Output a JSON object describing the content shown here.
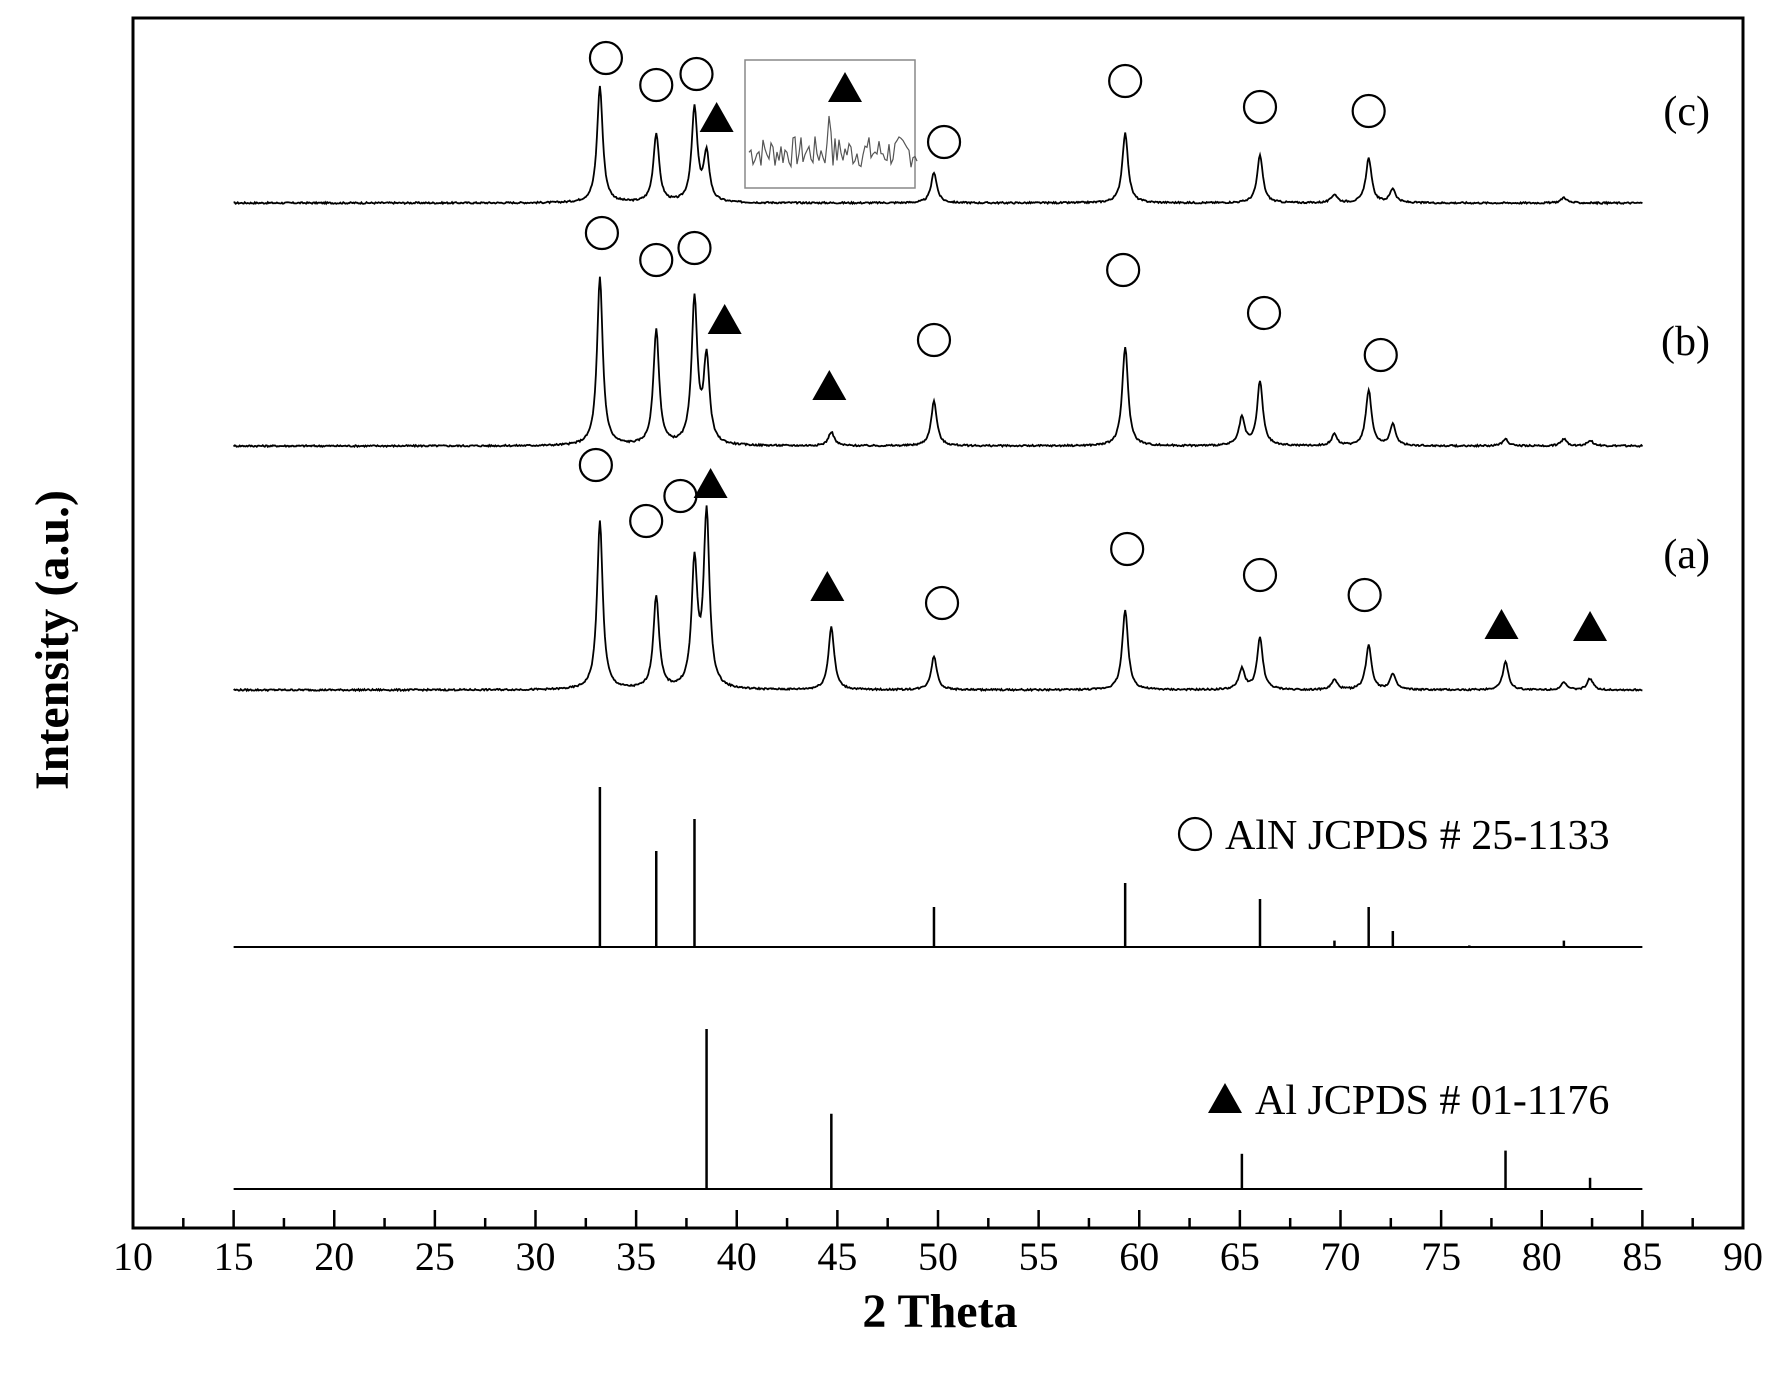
{
  "chart_data": {
    "type": "line",
    "xlabel": "2  Theta",
    "ylabel": "Intensity (a.u.)",
    "xlim": [
      10,
      90
    ],
    "x_ticks": [
      10,
      15,
      20,
      25,
      30,
      35,
      40,
      45,
      50,
      55,
      60,
      65,
      70,
      75,
      80,
      85,
      90
    ],
    "x_tick_labels": [
      "10",
      "15",
      "20",
      "25",
      "30",
      "35",
      "40",
      "45",
      "50",
      "55",
      "60",
      "65",
      "70",
      "75",
      "80",
      "85",
      "90"
    ],
    "y_ticks_shown": false,
    "legend_position": "right",
    "series": [
      {
        "name": "(c)",
        "peaks": [
          {
            "x": 33.2,
            "h": 0.83
          },
          {
            "x": 36.0,
            "h": 0.49
          },
          {
            "x": 37.9,
            "h": 0.67
          },
          {
            "x": 38.5,
            "h": 0.34
          },
          {
            "x": 49.8,
            "h": 0.22
          },
          {
            "x": 59.3,
            "h": 0.5
          },
          {
            "x": 66.0,
            "h": 0.34
          },
          {
            "x": 69.7,
            "h": 0.06
          },
          {
            "x": 71.4,
            "h": 0.32
          },
          {
            "x": 72.6,
            "h": 0.1
          },
          {
            "x": 81.1,
            "h": 0.04
          }
        ],
        "markers": [
          {
            "x": 33.5,
            "type": "AlN"
          },
          {
            "x": 36.0,
            "type": "AlN"
          },
          {
            "x": 38.0,
            "type": "AlN"
          },
          {
            "x": 39.0,
            "type": "Al"
          },
          {
            "x": 50.3,
            "type": "AlN"
          },
          {
            "x": 59.3,
            "type": "AlN"
          },
          {
            "x": 66.0,
            "type": "AlN"
          },
          {
            "x": 71.4,
            "type": "AlN"
          }
        ],
        "inset": {
          "peak_x": 45.0,
          "marker": "Al"
        }
      },
      {
        "name": "(b)",
        "peaks": [
          {
            "x": 33.2,
            "h": 1.2
          },
          {
            "x": 36.0,
            "h": 0.82
          },
          {
            "x": 37.9,
            "h": 1.04
          },
          {
            "x": 38.5,
            "h": 0.61
          },
          {
            "x": 44.7,
            "h": 0.1
          },
          {
            "x": 49.8,
            "h": 0.32
          },
          {
            "x": 59.3,
            "h": 0.71
          },
          {
            "x": 65.1,
            "h": 0.2
          },
          {
            "x": 66.0,
            "h": 0.46
          },
          {
            "x": 69.7,
            "h": 0.08
          },
          {
            "x": 71.4,
            "h": 0.4
          },
          {
            "x": 72.6,
            "h": 0.15
          },
          {
            "x": 78.2,
            "h": 0.05
          },
          {
            "x": 81.1,
            "h": 0.05
          },
          {
            "x": 82.4,
            "h": 0.04
          }
        ],
        "markers": [
          {
            "x": 33.3,
            "type": "AlN"
          },
          {
            "x": 36.0,
            "type": "AlN"
          },
          {
            "x": 37.9,
            "type": "AlN"
          },
          {
            "x": 39.4,
            "type": "Al"
          },
          {
            "x": 44.6,
            "type": "Al"
          },
          {
            "x": 49.8,
            "type": "AlN"
          },
          {
            "x": 59.2,
            "type": "AlN"
          },
          {
            "x": 66.2,
            "type": "AlN"
          },
          {
            "x": 72.0,
            "type": "AlN"
          }
        ]
      },
      {
        "name": "(a)",
        "peaks": [
          {
            "x": 33.2,
            "h": 1.2
          },
          {
            "x": 36.0,
            "h": 0.66
          },
          {
            "x": 37.9,
            "h": 0.89
          },
          {
            "x": 38.5,
            "h": 1.25
          },
          {
            "x": 44.7,
            "h": 0.45
          },
          {
            "x": 49.8,
            "h": 0.24
          },
          {
            "x": 59.3,
            "h": 0.57
          },
          {
            "x": 65.1,
            "h": 0.15
          },
          {
            "x": 66.0,
            "h": 0.37
          },
          {
            "x": 69.7,
            "h": 0.07
          },
          {
            "x": 71.4,
            "h": 0.32
          },
          {
            "x": 72.6,
            "h": 0.11
          },
          {
            "x": 78.2,
            "h": 0.2
          },
          {
            "x": 81.1,
            "h": 0.05
          },
          {
            "x": 82.4,
            "h": 0.08
          }
        ],
        "markers": [
          {
            "x": 33.0,
            "type": "AlN"
          },
          {
            "x": 35.5,
            "type": "AlN"
          },
          {
            "x": 37.2,
            "type": "AlN"
          },
          {
            "x": 38.7,
            "type": "Al"
          },
          {
            "x": 44.5,
            "type": "Al"
          },
          {
            "x": 50.2,
            "type": "AlN"
          },
          {
            "x": 59.4,
            "type": "AlN"
          },
          {
            "x": 66.0,
            "type": "AlN"
          },
          {
            "x": 71.2,
            "type": "AlN"
          },
          {
            "x": 78.0,
            "type": "Al"
          },
          {
            "x": 82.4,
            "type": "Al"
          }
        ]
      }
    ],
    "reference_patterns": [
      {
        "name": "AlN JCPDS # 25-1133",
        "symbol": "circle",
        "sticks": [
          {
            "x": 33.2,
            "h": 1.0
          },
          {
            "x": 36.0,
            "h": 0.6
          },
          {
            "x": 37.9,
            "h": 0.8
          },
          {
            "x": 49.8,
            "h": 0.25
          },
          {
            "x": 59.3,
            "h": 0.4
          },
          {
            "x": 66.0,
            "h": 0.3
          },
          {
            "x": 69.7,
            "h": 0.04
          },
          {
            "x": 71.4,
            "h": 0.25
          },
          {
            "x": 72.6,
            "h": 0.1
          },
          {
            "x": 76.4,
            "h": 0.01
          },
          {
            "x": 81.1,
            "h": 0.04
          }
        ]
      },
      {
        "name": "Al JCPDS # 01-1176",
        "symbol": "triangle",
        "sticks": [
          {
            "x": 38.5,
            "h": 1.0
          },
          {
            "x": 44.7,
            "h": 0.47
          },
          {
            "x": 65.1,
            "h": 0.22
          },
          {
            "x": 78.2,
            "h": 0.24
          },
          {
            "x": 82.4,
            "h": 0.07
          }
        ]
      }
    ]
  }
}
